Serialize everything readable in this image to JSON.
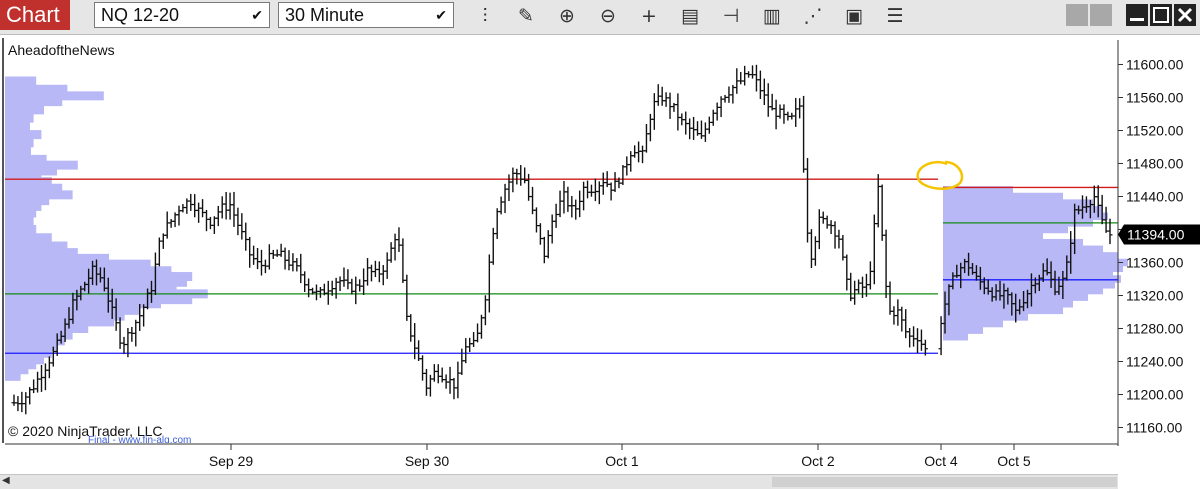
{
  "toolbar": {
    "tab_label": "Chart",
    "instrument": "NQ 12-20",
    "interval": "30 Minute",
    "tools": [
      {
        "name": "bar-style-icon",
        "glyph": "⫶"
      },
      {
        "name": "draw-pencil-icon",
        "glyph": "✎"
      },
      {
        "name": "zoom-in-icon",
        "glyph": "⊕"
      },
      {
        "name": "zoom-out-icon",
        "glyph": "⊖"
      },
      {
        "name": "crosshair-icon",
        "glyph": "+"
      },
      {
        "name": "data-box-icon",
        "glyph": "▤"
      },
      {
        "name": "properties-icon",
        "glyph": "⊣"
      },
      {
        "name": "indicators-icon",
        "glyph": "▥"
      },
      {
        "name": "strategies-icon",
        "glyph": "⋰"
      },
      {
        "name": "drawing-objects-icon",
        "glyph": "▣"
      },
      {
        "name": "list-icon",
        "glyph": "☰"
      }
    ]
  },
  "watermark": "AheadoftheNews",
  "copyright": "© 2020 NinjaTrader, LLC",
  "footer_text": "Final - www.fin-alg.com",
  "colors": {
    "red_line": "#d11a1a",
    "green_line": "#138a13",
    "blue_line": "#1a1aff",
    "profile": "#b8b8f6",
    "highlight": "#f5c400",
    "tab": "#c0302d"
  },
  "chart_data": {
    "type": "ohlc",
    "instrument": "NQ 12-20",
    "interval": "30 Minute",
    "ylim": [
      11140,
      11630
    ],
    "y_ticks": [
      11160,
      11200,
      11240,
      11280,
      11320,
      11360,
      11400,
      11440,
      11480,
      11520,
      11560,
      11600
    ],
    "y_tick_labels": [
      "11160.00",
      "11200.00",
      "11240.00",
      "11280.00",
      "11320.00",
      "11360.00",
      "11400.00",
      "11440.00",
      "11480.00",
      "11520.00",
      "11560.00",
      "11600.00"
    ],
    "x_labels": [
      "Sep 29",
      "Sep 30",
      "Oct 1",
      "Oct 2",
      "Oct 4",
      "Oct 5"
    ],
    "last_price_label": "11394.00",
    "last_price": 11394,
    "horizontal_lines": [
      {
        "color": "red",
        "price": 11461
      },
      {
        "color": "green",
        "price": 11322
      },
      {
        "color": "blue",
        "price": 11250
      }
    ],
    "session_lines": [
      {
        "color": "red",
        "price": 11451
      },
      {
        "color": "green",
        "price": 11408
      },
      {
        "color": "blue",
        "price": 11339
      }
    ],
    "close_path": [
      [
        0,
        11190
      ],
      [
        10,
        11195
      ],
      [
        20,
        11210
      ],
      [
        30,
        11230
      ],
      [
        40,
        11250
      ],
      [
        50,
        11275
      ],
      [
        60,
        11310
      ],
      [
        70,
        11330
      ],
      [
        80,
        11350
      ],
      [
        90,
        11340
      ],
      [
        100,
        11300
      ],
      [
        110,
        11260
      ],
      [
        120,
        11280
      ],
      [
        130,
        11300
      ],
      [
        140,
        11330
      ],
      [
        150,
        11395
      ],
      [
        160,
        11410
      ],
      [
        170,
        11430
      ],
      [
        180,
        11435
      ],
      [
        190,
        11420
      ],
      [
        200,
        11410
      ],
      [
        210,
        11425
      ],
      [
        220,
        11430
      ],
      [
        230,
        11400
      ],
      [
        240,
        11370
      ],
      [
        250,
        11355
      ],
      [
        260,
        11365
      ],
      [
        270,
        11370
      ],
      [
        280,
        11360
      ],
      [
        290,
        11350
      ],
      [
        300,
        11330
      ],
      [
        310,
        11320
      ],
      [
        320,
        11330
      ],
      [
        330,
        11340
      ],
      [
        340,
        11330
      ],
      [
        350,
        11330
      ],
      [
        360,
        11350
      ],
      [
        370,
        11345
      ],
      [
        380,
        11360
      ],
      [
        390,
        11400
      ],
      [
        400,
        11290
      ],
      [
        410,
        11250
      ],
      [
        420,
        11210
      ],
      [
        430,
        11230
      ],
      [
        440,
        11220
      ],
      [
        450,
        11210
      ],
      [
        460,
        11260
      ],
      [
        470,
        11260
      ],
      [
        480,
        11320
      ],
      [
        490,
        11420
      ],
      [
        500,
        11450
      ],
      [
        510,
        11470
      ],
      [
        520,
        11460
      ],
      [
        530,
        11410
      ],
      [
        540,
        11370
      ],
      [
        550,
        11420
      ],
      [
        560,
        11440
      ],
      [
        570,
        11420
      ],
      [
        580,
        11450
      ],
      [
        590,
        11450
      ],
      [
        600,
        11460
      ],
      [
        610,
        11450
      ],
      [
        620,
        11470
      ],
      [
        630,
        11500
      ],
      [
        640,
        11490
      ],
      [
        650,
        11550
      ],
      [
        660,
        11560
      ],
      [
        670,
        11550
      ],
      [
        680,
        11530
      ],
      [
        690,
        11520
      ],
      [
        700,
        11510
      ],
      [
        710,
        11540
      ],
      [
        720,
        11560
      ],
      [
        730,
        11570
      ],
      [
        740,
        11580
      ],
      [
        750,
        11590
      ],
      [
        760,
        11570
      ],
      [
        770,
        11545
      ],
      [
        780,
        11540
      ],
      [
        790,
        11530
      ],
      [
        800,
        11550
      ],
      [
        805,
        11460
      ],
      [
        810,
        11360
      ],
      [
        820,
        11410
      ],
      [
        830,
        11410
      ],
      [
        840,
        11390
      ],
      [
        850,
        11320
      ],
      [
        860,
        11330
      ],
      [
        870,
        11330
      ],
      [
        880,
        11450
      ],
      [
        890,
        11300
      ],
      [
        900,
        11300
      ],
      [
        910,
        11270
      ],
      [
        920,
        11270
      ],
      [
        930,
        11250
      ],
      [
        937,
        11240
      ],
      [
        944,
        11290
      ],
      [
        950,
        11320
      ],
      [
        960,
        11350
      ],
      [
        970,
        11360
      ],
      [
        980,
        11340
      ],
      [
        990,
        11330
      ],
      [
        1000,
        11320
      ],
      [
        1010,
        11320
      ],
      [
        1020,
        11300
      ],
      [
        1030,
        11320
      ],
      [
        1040,
        11340
      ],
      [
        1050,
        11350
      ],
      [
        1060,
        11330
      ],
      [
        1070,
        11340
      ],
      [
        1080,
        11420
      ],
      [
        1090,
        11430
      ],
      [
        1100,
        11440
      ],
      [
        1110,
        11400
      ],
      [
        1116,
        11394
      ]
    ],
    "volume_profile_left": [
      [
        11580,
        60
      ],
      [
        11570,
        120
      ],
      [
        11562,
        190
      ],
      [
        11555,
        110
      ],
      [
        11545,
        75
      ],
      [
        11535,
        55
      ],
      [
        11525,
        48
      ],
      [
        11515,
        70
      ],
      [
        11505,
        55
      ],
      [
        11495,
        50
      ],
      [
        11485,
        80
      ],
      [
        11478,
        140
      ],
      [
        11471,
        100
      ],
      [
        11465,
        70
      ],
      [
        11458,
        90
      ],
      [
        11450,
        110
      ],
      [
        11442,
        130
      ],
      [
        11435,
        85
      ],
      [
        11428,
        70
      ],
      [
        11420,
        60
      ],
      [
        11410,
        55
      ],
      [
        11400,
        60
      ],
      [
        11390,
        90
      ],
      [
        11380,
        120
      ],
      [
        11372,
        140
      ],
      [
        11365,
        200
      ],
      [
        11358,
        280
      ],
      [
        11350,
        320
      ],
      [
        11343,
        360
      ],
      [
        11336,
        350
      ],
      [
        11330,
        330
      ],
      [
        11322,
        390
      ],
      [
        11315,
        360
      ],
      [
        11310,
        300
      ],
      [
        11302,
        260
      ],
      [
        11295,
        230
      ],
      [
        11288,
        210
      ],
      [
        11280,
        160
      ],
      [
        11272,
        130
      ],
      [
        11265,
        115
      ],
      [
        11258,
        100
      ],
      [
        11250,
        90
      ],
      [
        11242,
        75
      ],
      [
        11236,
        60
      ],
      [
        11230,
        45
      ],
      [
        11222,
        30
      ]
    ],
    "volume_profile_session": [
      [
        11448,
        70
      ],
      [
        11440,
        120
      ],
      [
        11432,
        150
      ],
      [
        11424,
        160
      ],
      [
        11416,
        165
      ],
      [
        11408,
        150
      ],
      [
        11400,
        125
      ],
      [
        11392,
        100
      ],
      [
        11384,
        140
      ],
      [
        11376,
        160
      ],
      [
        11368,
        175
      ],
      [
        11360,
        185
      ],
      [
        11353,
        180
      ],
      [
        11346,
        170
      ],
      [
        11340,
        178
      ],
      [
        11333,
        172
      ],
      [
        11326,
        160
      ],
      [
        11318,
        145
      ],
      [
        11310,
        130
      ],
      [
        11302,
        120
      ],
      [
        11294,
        85
      ],
      [
        11286,
        60
      ],
      [
        11278,
        40
      ],
      [
        11270,
        25
      ]
    ],
    "highlight_note": "hand-drawn yellow circle at red line level"
  }
}
